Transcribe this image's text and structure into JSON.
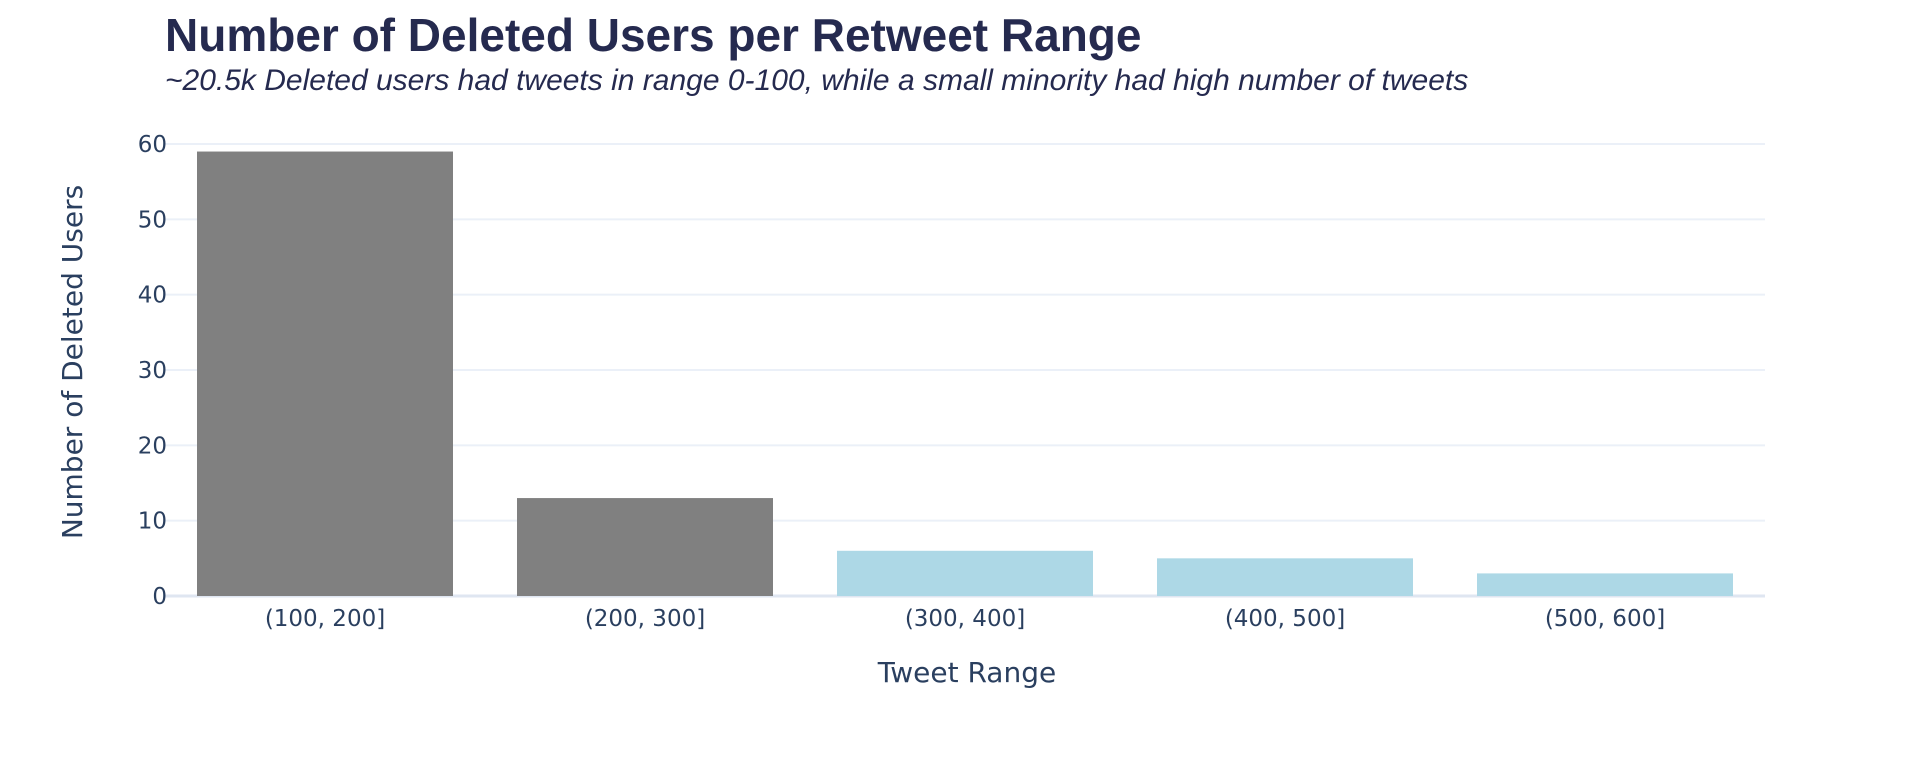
{
  "chart_data": {
    "type": "bar",
    "title": "Number of Deleted Users per Retweet Range",
    "subtitle": "~20.5k Deleted users had tweets in range 0-100, while a small minority had high number of tweets",
    "xlabel": "Tweet Range",
    "ylabel": "Number of Deleted Users",
    "categories": [
      "(100, 200]",
      "(200, 300]",
      "(300, 400]",
      "(400, 500]",
      "(500, 600]"
    ],
    "values": [
      59,
      13,
      6,
      5,
      3
    ],
    "bar_colors": [
      "#808080",
      "#808080",
      "#add8e6",
      "#add8e6",
      "#add8e6"
    ],
    "ylim": [
      0,
      60
    ],
    "yticks": [
      0,
      10,
      20,
      30,
      40,
      50,
      60
    ],
    "grid": true,
    "legend": "none",
    "colors": {
      "text": "#2a3f5f",
      "title": "#252a4f",
      "grid": "#ebf0f8"
    }
  }
}
